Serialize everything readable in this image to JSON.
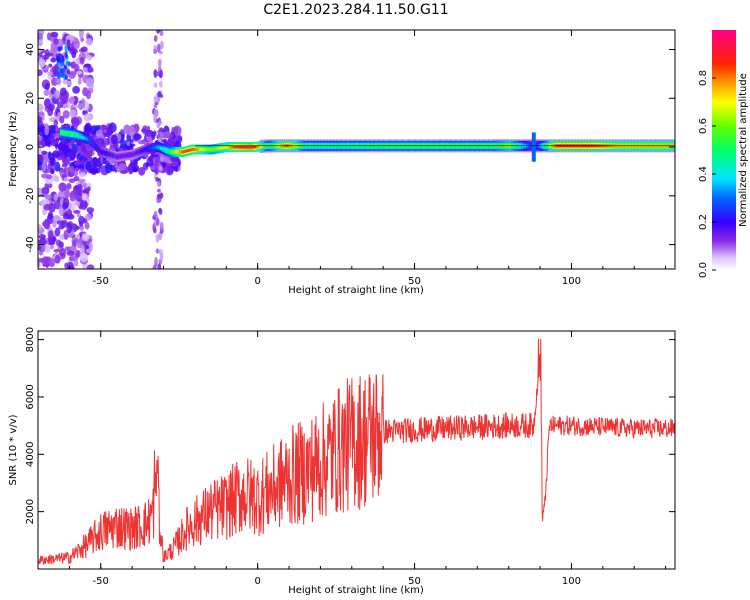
{
  "figure": {
    "title": "C2E1.2023.284.11.50.G11"
  },
  "chart_data": [
    {
      "type": "heatmap",
      "xlabel": "Height of straight line (km)",
      "ylabel": "Frequency (Hz)",
      "xlim": [
        -70,
        133
      ],
      "ylim": [
        -50,
        48
      ],
      "x_ticks": [
        -50,
        0,
        50,
        100
      ],
      "y_ticks": [
        -40,
        -20,
        0,
        20,
        40
      ],
      "x_tick_labels": [
        "-50",
        "0",
        "50",
        "100"
      ],
      "y_tick_labels": [
        "-40",
        "-20",
        "0",
        "20",
        "40"
      ],
      "colorbar": {
        "label": "Normalized spectral amplitude",
        "range": [
          0,
          1
        ],
        "ticks": [
          0.0,
          0.2,
          0.4,
          0.6,
          0.8
        ],
        "tick_labels": [
          "0.0",
          "0.2",
          "0.4",
          "0.6",
          "0.8"
        ],
        "colormap": "rainbow (white-violet-blue-cyan-green-yellow-red-magenta)"
      },
      "ridge": [
        {
          "x": -63,
          "f": 6,
          "amp": 0.55
        },
        {
          "x": -58,
          "f": 5,
          "amp": 0.5
        },
        {
          "x": -54,
          "f": 3,
          "amp": 0.3
        },
        {
          "x": -50,
          "f": -2,
          "amp": 0.2
        },
        {
          "x": -45,
          "f": -4,
          "amp": 0.15
        },
        {
          "x": -40,
          "f": -3,
          "amp": 0.15
        },
        {
          "x": -36,
          "f": -1,
          "amp": 0.2
        },
        {
          "x": -32,
          "f": 0,
          "amp": 0.35
        },
        {
          "x": -28,
          "f": -2,
          "amp": 0.55
        },
        {
          "x": -24,
          "f": -2,
          "amp": 0.85
        },
        {
          "x": -21,
          "f": -1,
          "amp": 0.85
        },
        {
          "x": -18,
          "f": -1,
          "amp": 0.7
        },
        {
          "x": -15,
          "f": -1,
          "amp": 0.6
        },
        {
          "x": -10,
          "f": 0,
          "amp": 0.7
        },
        {
          "x": -7,
          "f": 0,
          "amp": 0.9
        },
        {
          "x": -2,
          "f": 0,
          "amp": 0.95
        },
        {
          "x": 3,
          "f": 0.5,
          "amp": 0.5
        },
        {
          "x": 9,
          "f": 0.5,
          "amp": 0.85
        },
        {
          "x": 15,
          "f": 0.5,
          "amp": 0.5
        },
        {
          "x": 25,
          "f": 0.5,
          "amp": 0.5
        },
        {
          "x": 40,
          "f": 0.5,
          "amp": 0.55
        },
        {
          "x": 60,
          "f": 0.5,
          "amp": 0.55
        },
        {
          "x": 75,
          "f": 0.5,
          "amp": 0.55
        },
        {
          "x": 80,
          "f": 0.5,
          "amp": 0.65
        },
        {
          "x": 88,
          "f": 0.5,
          "amp": 0.2
        },
        {
          "x": 95,
          "f": 0.5,
          "amp": 0.9
        },
        {
          "x": 105,
          "f": 0.5,
          "amp": 0.9
        },
        {
          "x": 115,
          "f": 0.5,
          "amp": 0.75
        },
        {
          "x": 125,
          "f": 0.5,
          "amp": 0.75
        },
        {
          "x": 133,
          "f": 0.5,
          "amp": 0.75
        }
      ]
    },
    {
      "type": "line",
      "xlabel": "Height of straight line (km)",
      "ylabel": "SNR (10 * v/v)",
      "xlim": [
        -70,
        133
      ],
      "ylim": [
        0,
        8300
      ],
      "x_ticks": [
        -50,
        0,
        50,
        100
      ],
      "y_ticks": [
        2000,
        4000,
        6000,
        8000
      ],
      "x_tick_labels": [
        "-50",
        "0",
        "50",
        "100"
      ],
      "y_tick_labels": [
        "2000",
        "4000",
        "6000",
        "8000"
      ],
      "color": "#ee3333",
      "series_envelope": [
        [
          -70,
          300
        ],
        [
          -60,
          400
        ],
        [
          -55,
          800
        ],
        [
          -50,
          1300
        ],
        [
          -45,
          1500
        ],
        [
          -40,
          1400
        ],
        [
          -35,
          1600
        ],
        [
          -32,
          2400
        ],
        [
          -30,
          400
        ],
        [
          -27,
          700
        ],
        [
          -22,
          1500
        ],
        [
          -15,
          2000
        ],
        [
          -10,
          2200
        ],
        [
          -5,
          2600
        ],
        [
          0,
          2500
        ],
        [
          5,
          2800
        ],
        [
          10,
          3200
        ],
        [
          15,
          3400
        ],
        [
          20,
          3700
        ],
        [
          25,
          4100
        ],
        [
          30,
          4400
        ],
        [
          35,
          4600
        ],
        [
          40,
          4800
        ],
        [
          50,
          4850
        ],
        [
          60,
          4900
        ],
        [
          70,
          4950
        ],
        [
          80,
          5000
        ],
        [
          88,
          5000
        ],
        [
          90,
          7600
        ],
        [
          91,
          1300
        ],
        [
          93,
          5000
        ],
        [
          100,
          5000
        ],
        [
          110,
          4950
        ],
        [
          120,
          4900
        ],
        [
          133,
          4900
        ]
      ]
    }
  ]
}
